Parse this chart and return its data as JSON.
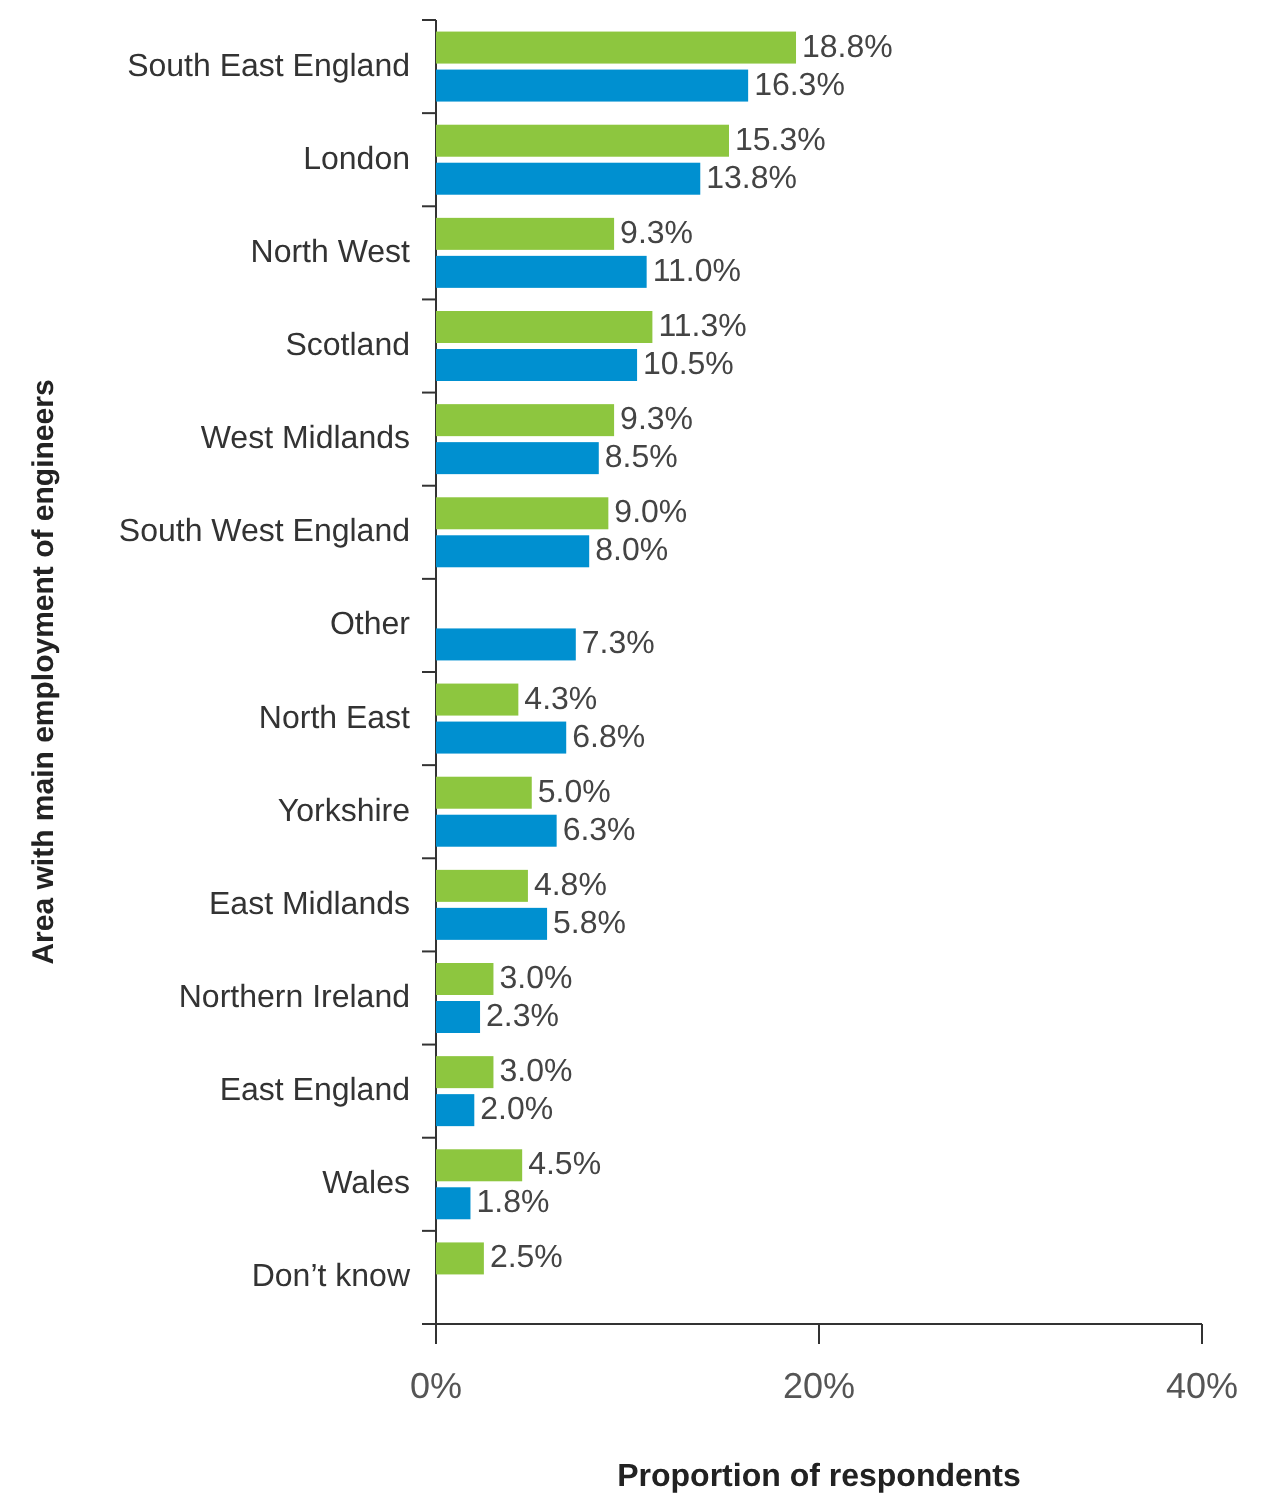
{
  "chart_data": {
    "type": "bar",
    "orientation": "horizontal",
    "ylabel": "Area with main employment of engineers",
    "xlabel": "Proportion of respondents",
    "categories": [
      "South East England",
      "London",
      "North West",
      "Scotland",
      "West Midlands",
      "South West England",
      "Other",
      "North East",
      "Yorkshire",
      "East Midlands",
      "Northern Ireland",
      "East England",
      "Wales",
      "Don’t know"
    ],
    "series": [
      {
        "color": "#8dc63f",
        "values": [
          18.8,
          15.3,
          9.3,
          11.3,
          9.3,
          9.0,
          null,
          4.3,
          5.0,
          4.8,
          3.0,
          3.0,
          4.5,
          2.5
        ],
        "value_labels": [
          "18.8%",
          "15.3%",
          "9.3%",
          "11.3%",
          "9.3%",
          "9.0%",
          null,
          "4.3%",
          "5.0%",
          "4.8%",
          "3.0%",
          "3.0%",
          "4.5%",
          "2.5%"
        ]
      },
      {
        "color": "#0090d0",
        "values": [
          16.3,
          13.8,
          11.0,
          10.5,
          8.5,
          8.0,
          7.3,
          6.8,
          6.3,
          5.8,
          2.3,
          2.0,
          1.8,
          null
        ],
        "value_labels": [
          "16.3%",
          "13.8%",
          "11.0%",
          "10.5%",
          "8.5%",
          "8.0%",
          "7.3%",
          "6.8%",
          "6.3%",
          "5.8%",
          "2.3%",
          "2.0%",
          "1.8%",
          null
        ]
      }
    ],
    "xlim": [
      0,
      40
    ],
    "xticks": [
      {
        "value": 0,
        "label": "0%"
      },
      {
        "value": 20,
        "label": "20%"
      },
      {
        "value": 40,
        "label": "40%"
      }
    ]
  }
}
